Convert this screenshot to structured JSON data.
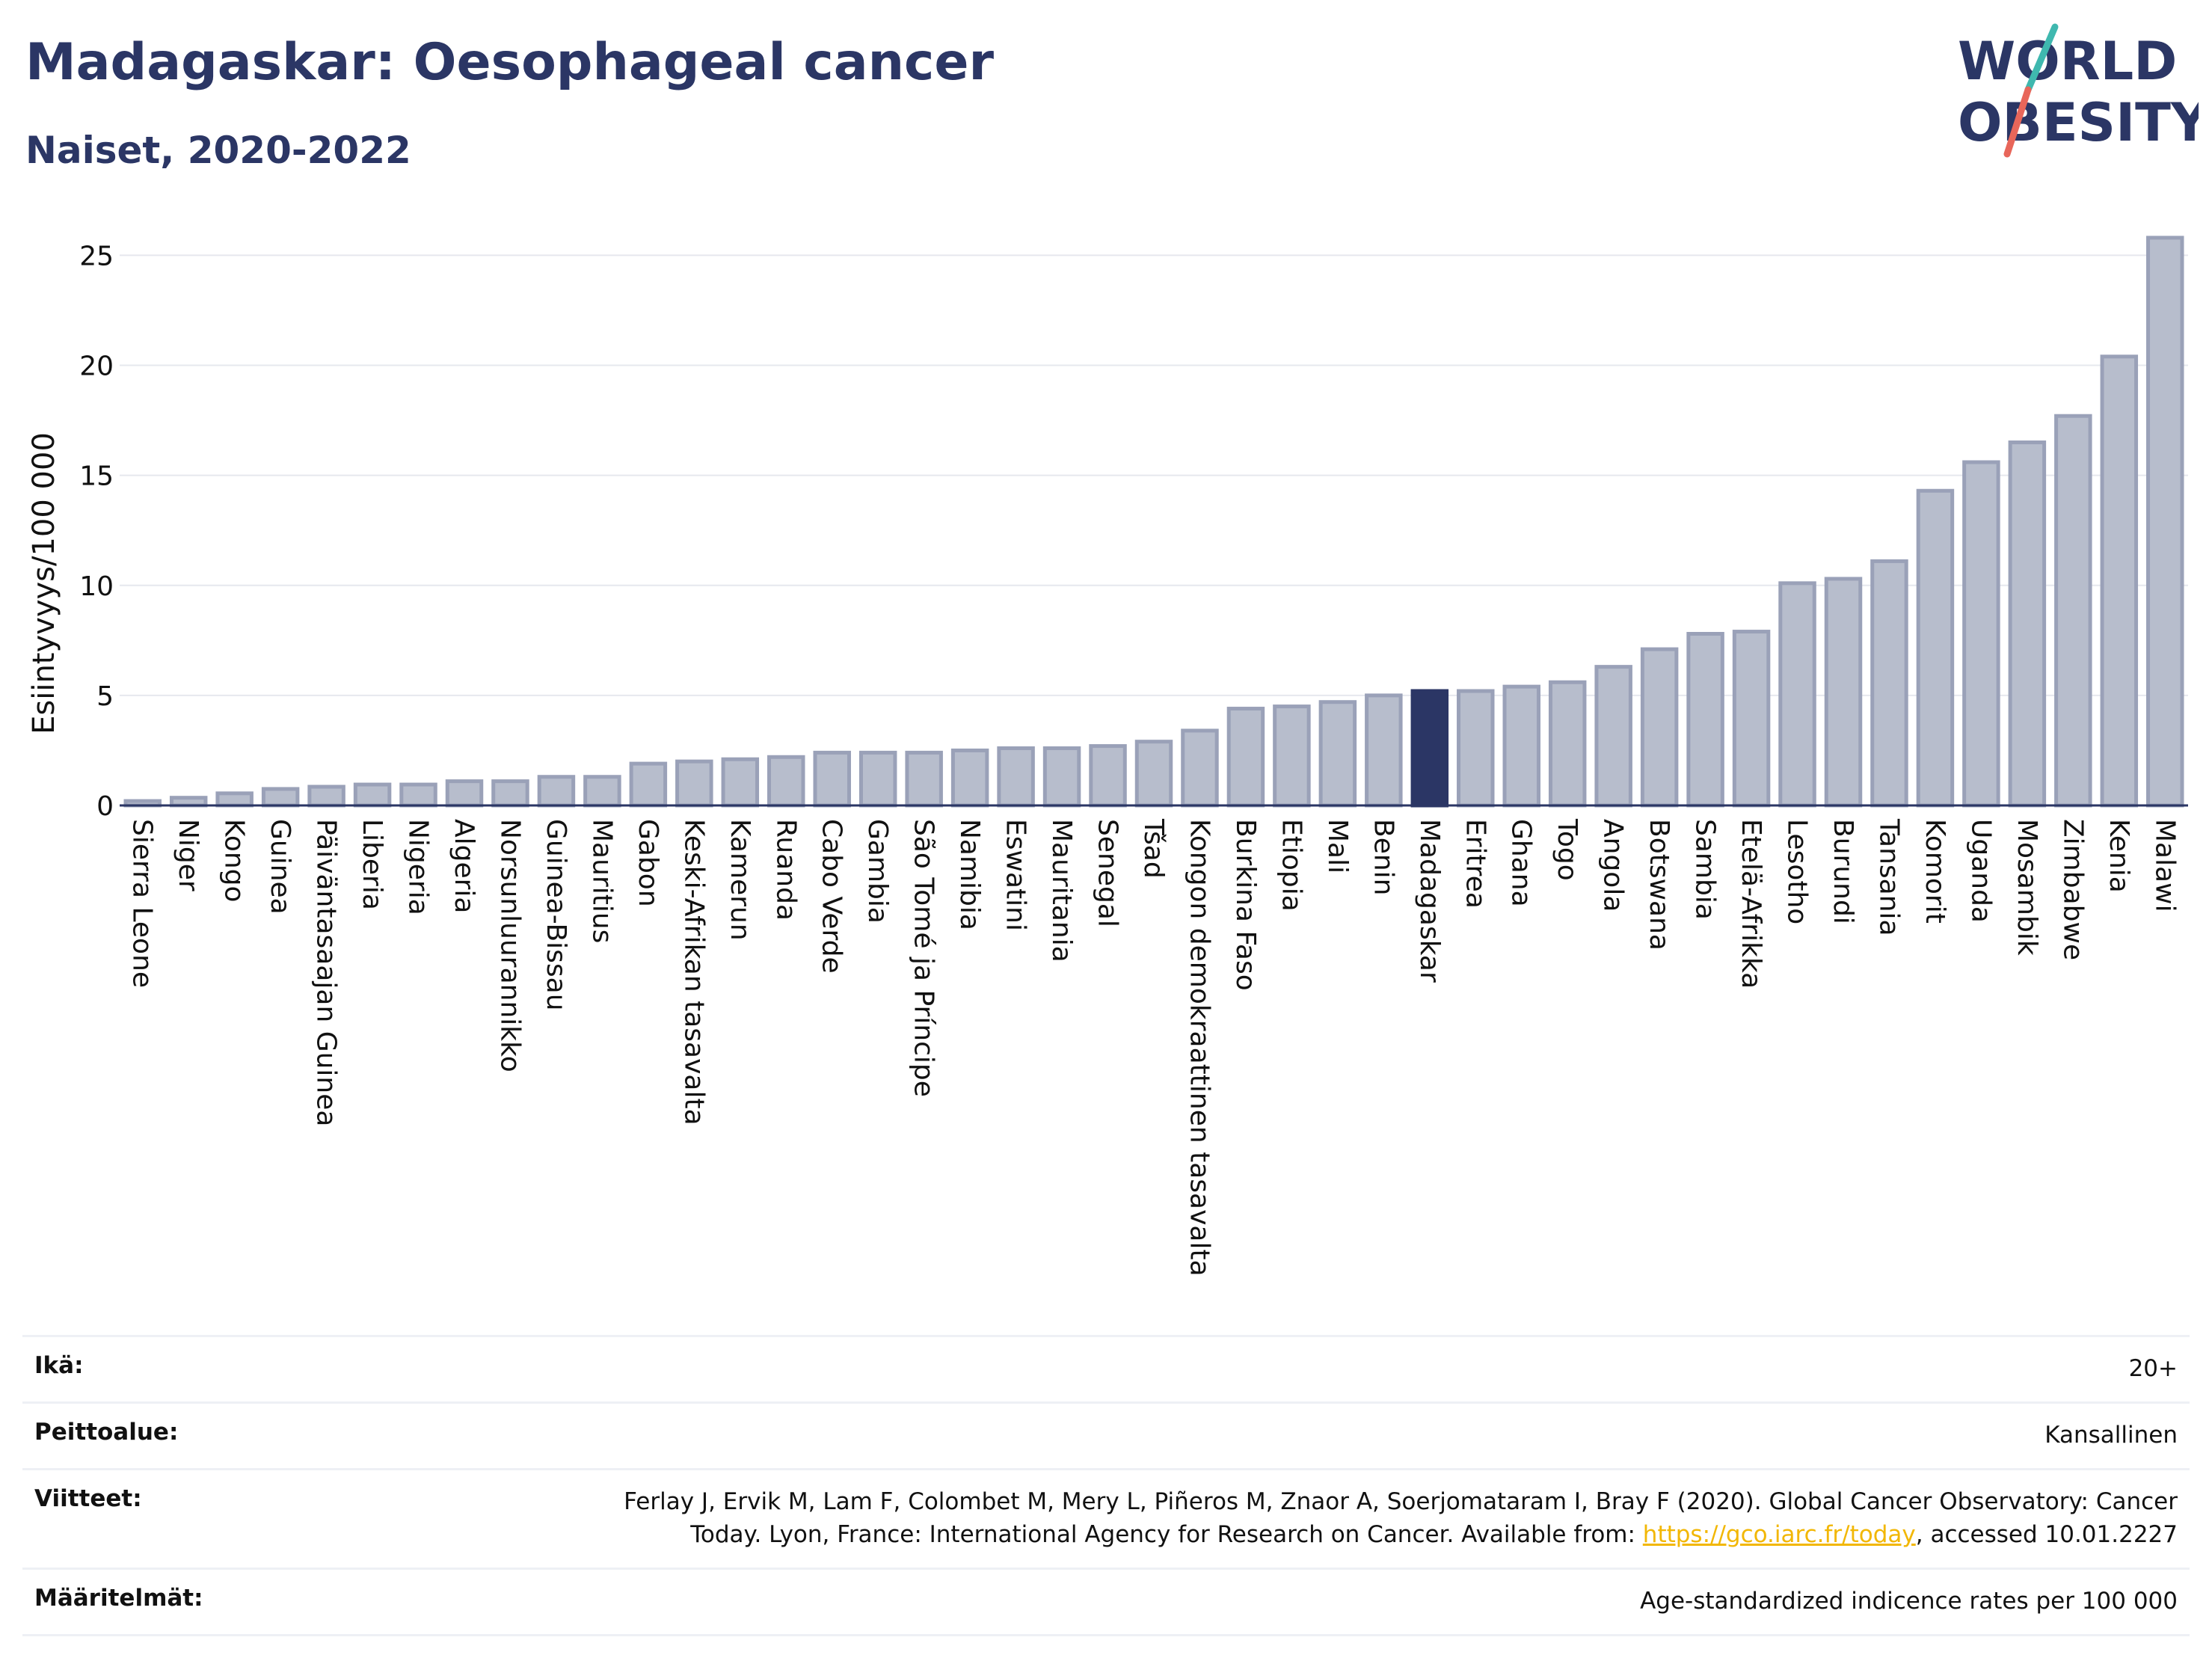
{
  "header": {
    "title": "Madagaskar: Oesophageal cancer",
    "subtitle": "Naiset, 2020-2022"
  },
  "logo": {
    "line1": "WORLD",
    "line2": "OBESITY",
    "colors": {
      "text": "#2b3665",
      "slash_top": "#3fb8af",
      "slash_bottom": "#e8665a"
    }
  },
  "colors": {
    "bar": "#b7bdcc",
    "bar_stroke": "#9aa1b8",
    "highlight": "#2b3665",
    "grid": "#e6e8ee",
    "axis": "#2b3665"
  },
  "chart_data": {
    "type": "bar",
    "ylabel": "Esiintyvyys/100 000",
    "ylim": [
      0,
      26
    ],
    "yticks": [
      0,
      5,
      10,
      15,
      20,
      25
    ],
    "grid": true,
    "highlight": "Madagaskar",
    "categories": [
      "Sierra Leone",
      "Niger",
      "Kongo",
      "Guinea",
      "Päiväntasaajan Guinea",
      "Liberia",
      "Nigeria",
      "Algeria",
      "Norsunluurannikko",
      "Guinea-Bissau",
      "Mauritius",
      "Gabon",
      "Keski-Afrikan tasavalta",
      "Kamerun",
      "Ruanda",
      "Cabo Verde",
      "Gambia",
      "São Tomé ja Príncipe",
      "Namibia",
      "Eswatini",
      "Mauritania",
      "Senegal",
      "Tšad",
      "Kongon demokraattinen tasavalta",
      "Burkina Faso",
      "Etiopia",
      "Mali",
      "Benin",
      "Madagaskar",
      "Eritrea",
      "Ghana",
      "Togo",
      "Angola",
      "Botswana",
      "Sambia",
      "Etelä-Afrikka",
      "Lesotho",
      "Burundi",
      "Tansania",
      "Komorit",
      "Uganda",
      "Mosambik",
      "Zimbabwe",
      "Kenia",
      "Malawi"
    ],
    "values": [
      0.2,
      0.35,
      0.55,
      0.75,
      0.85,
      0.95,
      0.95,
      1.1,
      1.1,
      1.3,
      1.3,
      1.9,
      2.0,
      2.1,
      2.2,
      2.4,
      2.4,
      2.4,
      2.5,
      2.6,
      2.6,
      2.7,
      2.9,
      3.4,
      4.4,
      4.5,
      4.7,
      5.0,
      5.2,
      5.2,
      5.4,
      5.6,
      6.3,
      7.1,
      7.8,
      7.9,
      10.1,
      10.3,
      11.1,
      14.3,
      15.6,
      16.5,
      17.7,
      20.4,
      25.8
    ]
  },
  "meta": [
    {
      "label": "Ikä:",
      "value": "20+"
    },
    {
      "label": "Peittoalue:",
      "value": "Kansallinen"
    },
    {
      "label": "Viitteet:",
      "value_line1": "Ferlay J, Ervik M, Lam F, Colombet M, Mery L, Piñeros M, Znaor A, Soerjomataram I, Bray F (2020). Global Cancer Observatory: Cancer",
      "value_line2_pre": "Today. Lyon, France: International Agency for Research on Cancer. Available from: ",
      "link": "https://gco.iarc.fr/today",
      "value_line2_post": ", accessed 10.01.2227"
    },
    {
      "label": "Määritelmät:",
      "value": "Age-standardized indicence rates per 100 000"
    }
  ]
}
